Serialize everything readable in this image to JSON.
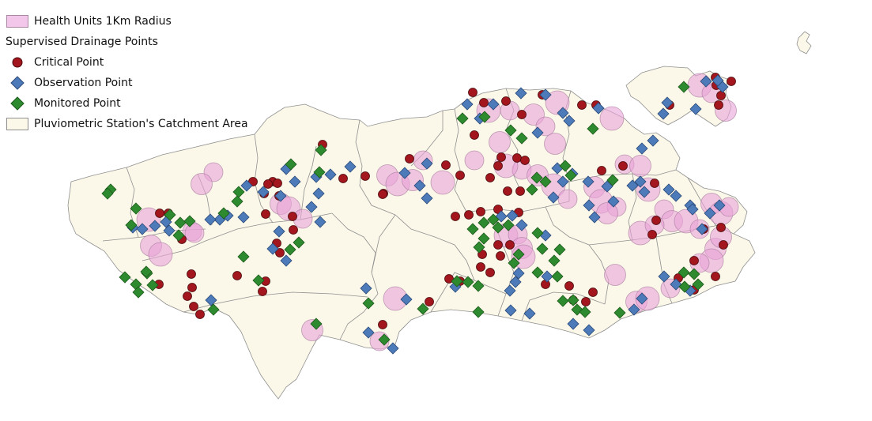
{
  "legend": {
    "health_units": "Health Units 1Km Radius",
    "group_title": "Supervised Drainage Points",
    "critical": "Critical Point",
    "observation": "Observation Point",
    "monitored": "Monitored Point",
    "catchment": "Pluviometric Station's Catchment Area"
  },
  "colors": {
    "background": "#ffffff",
    "land_fill": "#fbf8e9",
    "boundary": "#8f8f8f",
    "health_units": "#e9a3d8",
    "critical": "#a3161d",
    "observation": "#4d7ab8",
    "monitored": "#2e8a2e"
  },
  "icons": {
    "health_units": "pink-circle-icon",
    "critical": "red-circle-icon",
    "observation": "blue-diamond-icon",
    "monitored": "green-diamond-icon",
    "catchment": "cream-polygon-icon"
  }
}
